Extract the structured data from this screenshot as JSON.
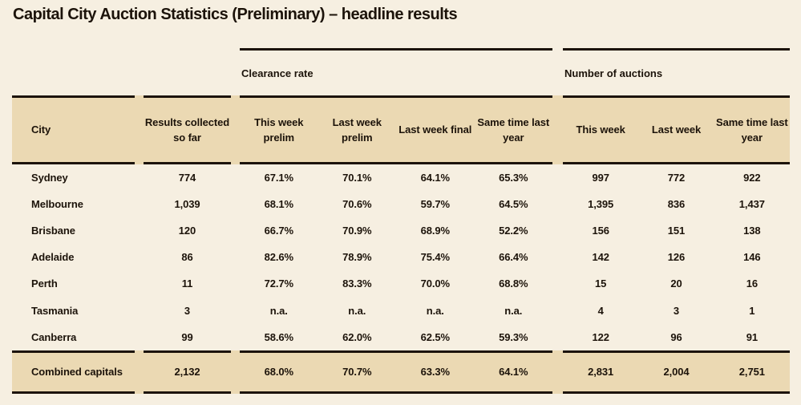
{
  "title": "Capital City Auction Statistics (Preliminary) – headline results",
  "groups": {
    "clearance": "Clearance rate",
    "auctions": "Number of auctions"
  },
  "columns": {
    "city": "City",
    "results": "Results collected so far",
    "clearance": [
      "This week prelim",
      "Last week prelim",
      "Last week final",
      "Same time last year"
    ],
    "auctions": [
      "This week",
      "Last week",
      "Same time last year"
    ]
  },
  "rows": [
    {
      "city": "Sydney",
      "results": "774",
      "clearance": [
        "67.1%",
        "70.1%",
        "64.1%",
        "65.3%"
      ],
      "auctions": [
        "997",
        "772",
        "922"
      ]
    },
    {
      "city": "Melbourne",
      "results": "1,039",
      "clearance": [
        "68.1%",
        "70.6%",
        "59.7%",
        "64.5%"
      ],
      "auctions": [
        "1,395",
        "836",
        "1,437"
      ]
    },
    {
      "city": "Brisbane",
      "results": "120",
      "clearance": [
        "66.7%",
        "70.9%",
        "68.9%",
        "52.2%"
      ],
      "auctions": [
        "156",
        "151",
        "138"
      ]
    },
    {
      "city": "Adelaide",
      "results": "86",
      "clearance": [
        "82.6%",
        "78.9%",
        "75.4%",
        "66.4%"
      ],
      "auctions": [
        "142",
        "126",
        "146"
      ]
    },
    {
      "city": "Perth",
      "results": "11",
      "clearance": [
        "72.7%",
        "83.3%",
        "70.0%",
        "68.8%"
      ],
      "auctions": [
        "15",
        "20",
        "16"
      ]
    },
    {
      "city": "Tasmania",
      "results": "3",
      "clearance": [
        "n.a.",
        "n.a.",
        "n.a.",
        "n.a."
      ],
      "auctions": [
        "4",
        "3",
        "1"
      ]
    },
    {
      "city": "Canberra",
      "results": "99",
      "clearance": [
        "58.6%",
        "62.0%",
        "62.5%",
        "59.3%"
      ],
      "auctions": [
        "122",
        "96",
        "91"
      ]
    }
  ],
  "total": {
    "city": "Combined capitals",
    "results": "2,132",
    "clearance": [
      "68.0%",
      "70.7%",
      "63.3%",
      "64.1%"
    ],
    "auctions": [
      "2,831",
      "2,004",
      "2,751"
    ]
  },
  "colors": {
    "page_background": "#f6efe1",
    "band_background": "#ebd9b3",
    "ink": "#1c130a"
  }
}
